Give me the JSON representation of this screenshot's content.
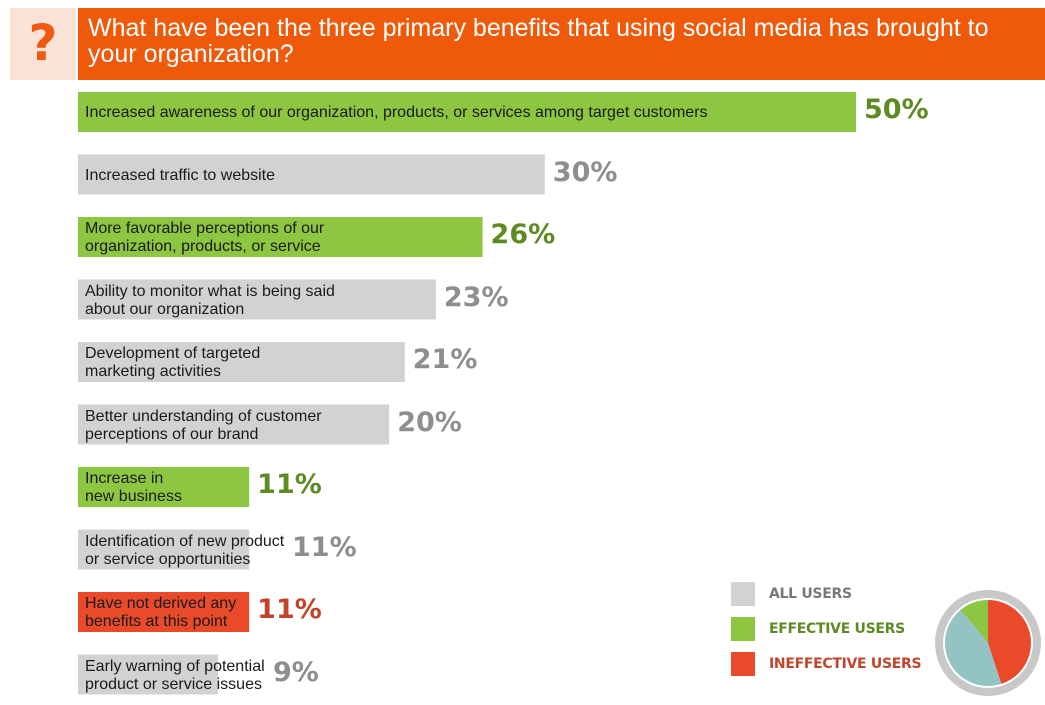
{
  "header": {
    "icon": "question-mark-icon",
    "question_mark": "?",
    "title": "What have been the three primary benefits that using social media has brought to your organization?"
  },
  "colors": {
    "orange": "#ef5a0a",
    "all": "#d2d2d2",
    "effective": "#8dc641",
    "ineffective": "#e84a2a",
    "value_all": "#8e8e8e",
    "value_effective": "#5e8a24",
    "value_ineffective": "#c2442a",
    "pie_teal": "#94c3c4",
    "pie_ring": "#c8c8c8"
  },
  "chart_data": {
    "type": "bar",
    "orientation": "horizontal",
    "categories": [
      "Increased awareness of our organization, products, or services among target customers",
      "Increased traffic to website",
      "More favorable perceptions of our organization, products, or service",
      "Ability to monitor what is being said about our organization",
      "Development of targeted marketing activities",
      "Better understanding of customer perceptions of our brand",
      "Increase in new business",
      "Identification of new product or service opportunities",
      "Have not derived any benefits at this point",
      "Early warning of potential product or service issues"
    ],
    "label_lines": [
      [
        "Increased awareness of our organization, products, or services among target customers"
      ],
      [
        "Increased traffic to website"
      ],
      [
        "More favorable perceptions of our",
        "organization, products, or service"
      ],
      [
        "Ability to monitor what is being said",
        "about our organization"
      ],
      [
        "Development of targeted",
        "marketing activities"
      ],
      [
        "Better understanding of customer",
        "perceptions of our brand"
      ],
      [
        "Increase in",
        "new business"
      ],
      [
        "Identification of new product",
        "or service opportunities"
      ],
      [
        "Have not derived any",
        "benefits at this point"
      ],
      [
        "Early warning of potential",
        "product or service issues"
      ]
    ],
    "values": [
      50,
      30,
      26,
      23,
      21,
      20,
      11,
      11,
      11,
      9
    ],
    "value_labels": [
      "50%",
      "30%",
      "26%",
      "23%",
      "21%",
      "20%",
      "11%",
      "11%",
      "11%",
      "9%"
    ],
    "groups": [
      "effective",
      "all",
      "effective",
      "all",
      "all",
      "all",
      "effective",
      "all",
      "ineffective",
      "all"
    ],
    "legend": [
      {
        "key": "all",
        "label": "ALL USERS"
      },
      {
        "key": "effective",
        "label": "EFFECTIVE USERS"
      },
      {
        "key": "ineffective",
        "label": "INEFFECTIVE USERS"
      }
    ],
    "legend_pie": [
      {
        "key": "ineffective",
        "share": 0.45
      },
      {
        "key": "teal",
        "share": 0.44
      },
      {
        "key": "effective",
        "share": 0.11
      }
    ],
    "xlim": [
      0,
      50
    ],
    "grid": false,
    "legend_placement": "bottom-right"
  }
}
